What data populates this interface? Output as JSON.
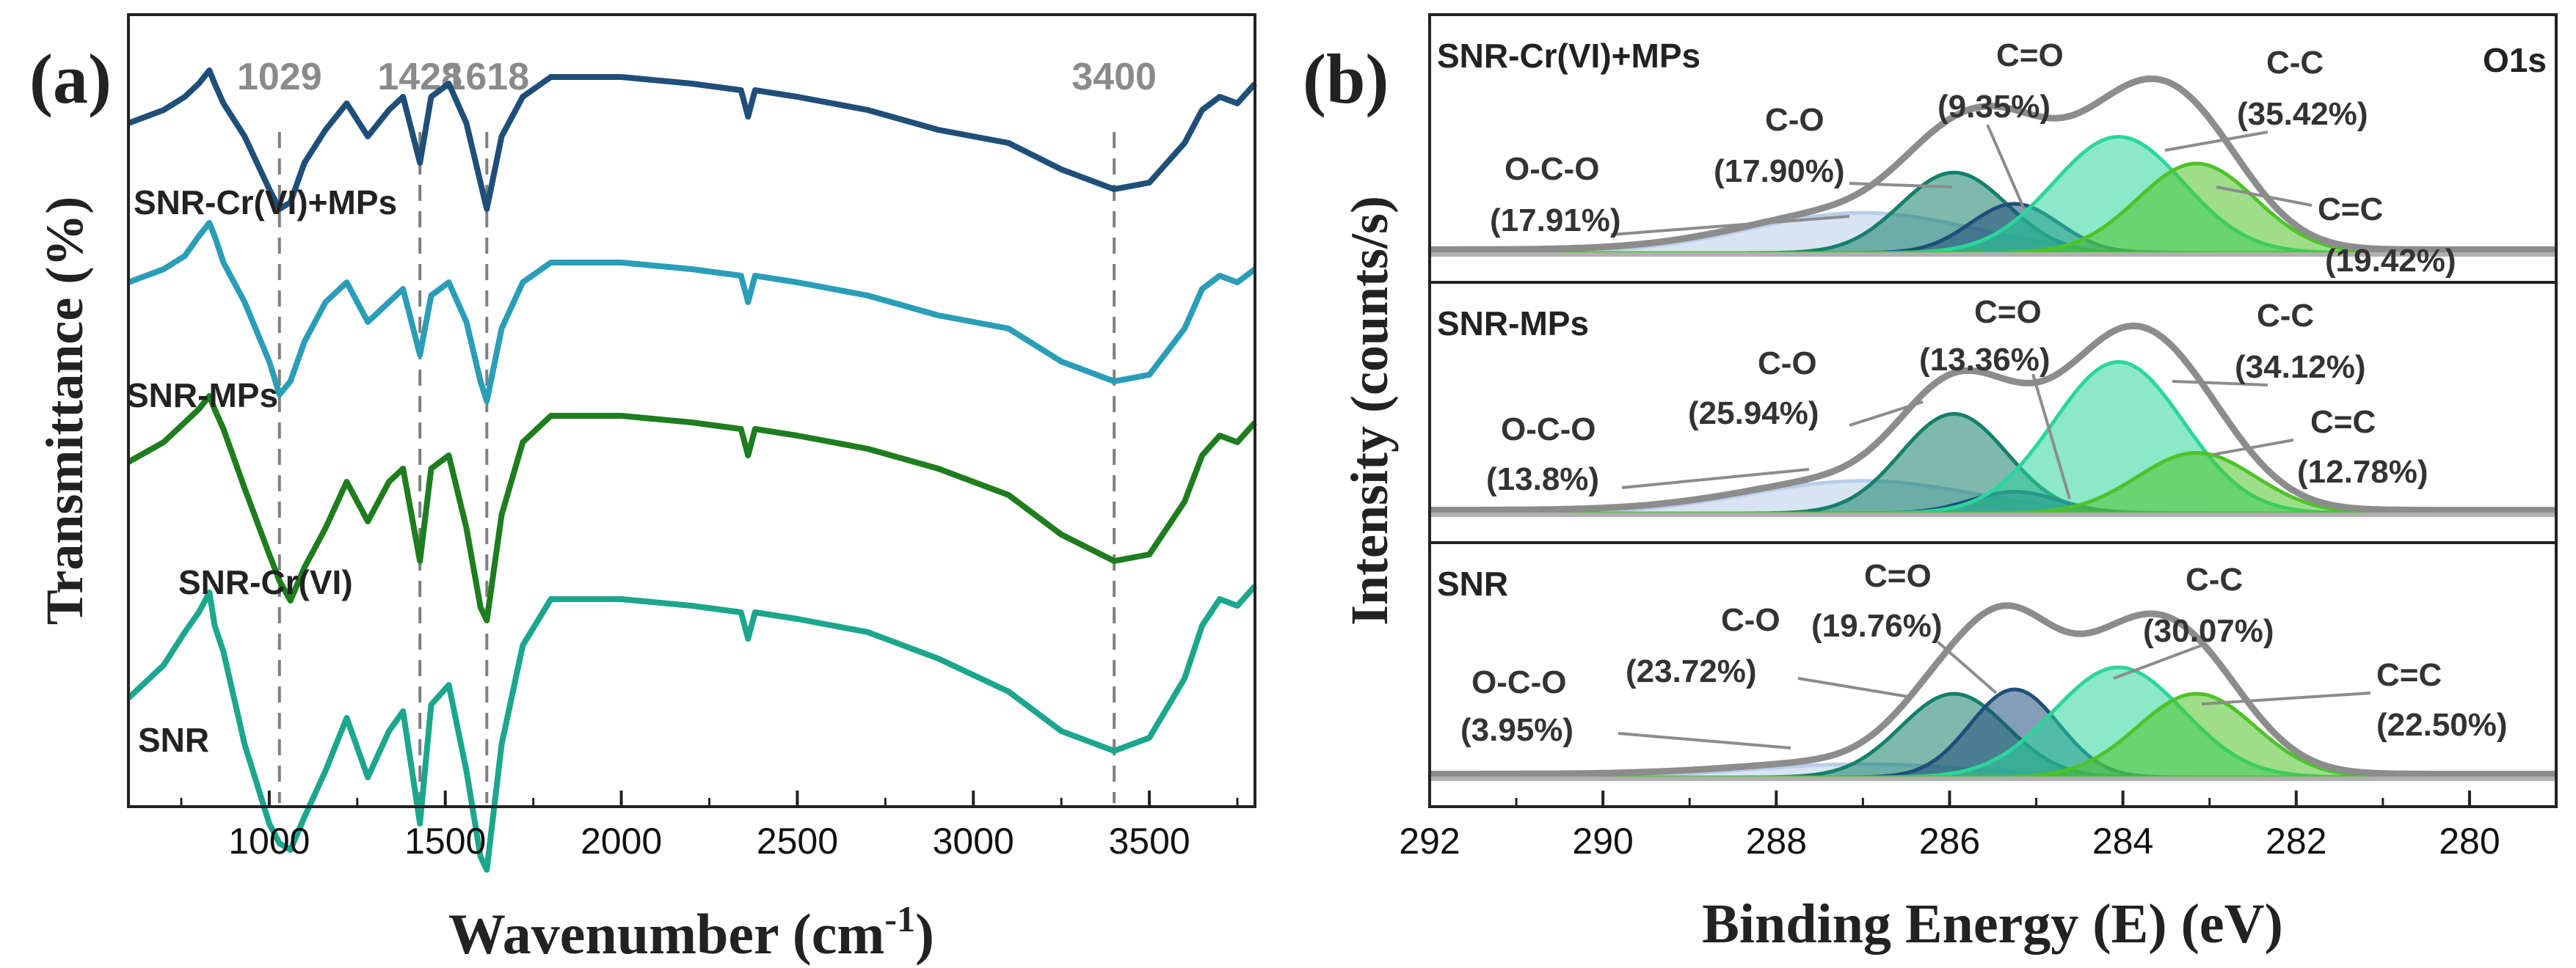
{
  "chart_data": [
    {
      "type": "line",
      "panel_label": "(a)",
      "xlabel_base": "Wavenumber (cm",
      "xlabel_sup": "-1",
      "xlabel_close": ")",
      "ylabel": "Transmittance (%)",
      "xlim": [
        600,
        3800
      ],
      "xticks": [
        {
          "value": 1000,
          "label": "1000"
        },
        {
          "value": 1500,
          "label": "1500"
        },
        {
          "value": 2000,
          "label": "2000"
        },
        {
          "value": 2500,
          "label": "2500"
        },
        {
          "value": 3000,
          "label": "3000"
        },
        {
          "value": 3500,
          "label": "3500"
        }
      ],
      "reference_lines": [
        {
          "value": 1029,
          "label": "1029"
        },
        {
          "value": 1428,
          "label": "1428"
        },
        {
          "value": 1618,
          "label": "1618"
        },
        {
          "value": 3400,
          "label": "3400"
        }
      ],
      "common_x": [
        600,
        700,
        760,
        800,
        830,
        845,
        870,
        930,
        1000,
        1029,
        1060,
        1100,
        1160,
        1220,
        1280,
        1340,
        1380,
        1428,
        1460,
        1510,
        1560,
        1600,
        1618,
        1660,
        1720,
        1800,
        2000,
        2200,
        2340,
        2360,
        2380,
        2500,
        2700,
        2900,
        3100,
        3250,
        3400,
        3500,
        3600,
        3650,
        3700,
        3750,
        3800
      ],
      "series": [
        {
          "name": "SNR-Cr(VI)+MPs",
          "label": "SNR-Cr(VI)+MPs",
          "color": "#1f4e79",
          "values": [
            18,
            20,
            22,
            24,
            26,
            24,
            21,
            16,
            8,
            5,
            6,
            12,
            17,
            21,
            16,
            20,
            22,
            12,
            22,
            24,
            18,
            9,
            5,
            16,
            22,
            25,
            25,
            24,
            23,
            19,
            23,
            22,
            20,
            17,
            15,
            11,
            8,
            9,
            15,
            20,
            22,
            21,
            24
          ]
        },
        {
          "name": "SNR-MPs",
          "label": "SNR-MPs",
          "color": "#2a9db8",
          "values": [
            20,
            22,
            24,
            27,
            29,
            27,
            23,
            17,
            8,
            3,
            5,
            11,
            17,
            20,
            14,
            17,
            19,
            9,
            18,
            20,
            14,
            5,
            2,
            13,
            20,
            23,
            23,
            22,
            21,
            17,
            21,
            20,
            18,
            15,
            13,
            8,
            5,
            6,
            13,
            19,
            21,
            20,
            22
          ]
        },
        {
          "name": "SNR-Cr(VI)",
          "label": "SNR-Cr(VI)",
          "color": "#1e7d1e",
          "values": [
            25,
            28,
            31,
            33,
            35,
            33,
            30,
            21,
            11,
            7,
            4,
            9,
            15,
            22,
            16,
            22,
            24,
            10,
            24,
            26,
            15,
            3,
            1,
            17,
            28,
            32,
            32,
            31,
            30,
            26,
            30,
            29,
            27,
            24,
            20,
            14,
            10,
            11,
            19,
            26,
            29,
            28,
            31
          ]
        },
        {
          "name": "SNR",
          "label": "SNR",
          "color": "#1ba68d",
          "values": [
            27,
            32,
            37,
            40,
            43,
            38,
            34,
            20,
            8,
            5,
            4,
            9,
            16,
            24,
            15,
            22,
            25,
            8,
            26,
            29,
            16,
            3,
            1,
            20,
            35,
            42,
            42,
            41,
            40,
            36,
            40,
            39,
            37,
            33,
            28,
            22,
            19,
            21,
            30,
            38,
            42,
            41,
            44
          ]
        }
      ]
    },
    {
      "type": "area",
      "panel_label": "(b)",
      "element": "O1s",
      "xlabel": "Binding Energy (E) (eV)",
      "ylabel": "Intensity (counts/s)",
      "xlim": [
        292,
        279
      ],
      "xticks": [
        292,
        290,
        288,
        286,
        284,
        282,
        280
      ],
      "envelope_color": "#8c8c8c",
      "peaks": {
        "O-C-O": {
          "center": 287.0,
          "fwhm": 1.9,
          "color": "#b9cdea"
        },
        "C-O": {
          "center": 285.95,
          "fwhm": 0.9,
          "color": "#14806a"
        },
        "C=O": {
          "center": 285.25,
          "fwhm": 0.75,
          "color": "#1f4e79"
        },
        "C-C": {
          "center": 284.05,
          "fwhm": 1.1,
          "color": "#2bd59b"
        },
        "C=C": {
          "center": 283.15,
          "fwhm": 1.0,
          "color": "#4fc22a"
        }
      },
      "panels": [
        {
          "sample": "SNR-Cr(VI)+MPs",
          "show_element": true,
          "components": [
            {
              "name": "O-C-O",
              "percent": "(17.91%)",
              "height": 0.18
            },
            {
              "name": "C-O",
              "percent": "(17.90%)",
              "height": 0.36
            },
            {
              "name": "C=O",
              "percent": "(9.35%)",
              "height": 0.22
            },
            {
              "name": "C-C",
              "percent": "(35.42%)",
              "height": 0.52
            },
            {
              "name": "C=C",
              "percent": "(19.42%)",
              "height": 0.4
            }
          ]
        },
        {
          "sample": "SNR-MPs",
          "show_element": false,
          "components": [
            {
              "name": "O-C-O",
              "percent": "(13.8%)",
              "height": 0.15
            },
            {
              "name": "C-O",
              "percent": "(25.94%)",
              "height": 0.46
            },
            {
              "name": "C=O",
              "percent": "(13.36%)",
              "height": 0.1
            },
            {
              "name": "C-C",
              "percent": "(34.12%)",
              "height": 0.7
            },
            {
              "name": "C=C",
              "percent": "(12.78%)",
              "height": 0.28
            }
          ]
        },
        {
          "sample": "SNR",
          "show_element": false,
          "components": [
            {
              "name": "O-C-O",
              "percent": "(3.95%)",
              "height": 0.06
            },
            {
              "name": "C-O",
              "percent": "(23.72%)",
              "height": 0.38
            },
            {
              "name": "C=O",
              "percent": "(19.76%)",
              "height": 0.4
            },
            {
              "name": "C-C",
              "percent": "(30.07%)",
              "height": 0.5
            },
            {
              "name": "C=C",
              "percent": "(22.50%)",
              "height": 0.38
            }
          ]
        }
      ]
    }
  ]
}
